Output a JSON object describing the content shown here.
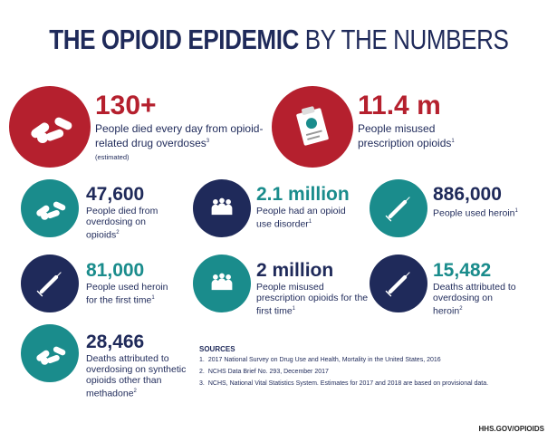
{
  "header": {
    "title_bold": "THE OPIOID EPIDEMIC",
    "title_light": "BY THE NUMBERS"
  },
  "stats": [
    {
      "number": "130+",
      "description": "People died every day from opioid-related drug overdoses",
      "source": "3",
      "note": "(estimated)"
    },
    {
      "number": "11.4 m",
      "description": "People misused prescription opioids",
      "source": "1"
    },
    {
      "number": "47,600",
      "description": "People died from overdosing on opioids",
      "source": "2"
    },
    {
      "number": "2.1 million",
      "description": "People had an opioid use disorder",
      "source": "1"
    },
    {
      "number": "886,000",
      "description": "People used heroin",
      "source": "1"
    },
    {
      "number": "81,000",
      "description": "People used heroin for the first time",
      "source": "1"
    },
    {
      "number": "2 million",
      "description": "People misused prescription opioids for the first time",
      "source": "1"
    },
    {
      "number": "15,482",
      "description": "Deaths attributed to overdosing on heroin",
      "source": "2"
    },
    {
      "number": "28,466",
      "description": "Deaths attributed to overdosing on synthetic opioids other than methadone",
      "source": "2"
    }
  ],
  "sources": {
    "heading": "SOURCES",
    "items": [
      {
        "number": "1.",
        "text": "2017 National Survey on Drug Use and Health, Mortality in the United States, 2016"
      },
      {
        "number": "2.",
        "text": "NCHS Data Brief No. 293, December 2017"
      },
      {
        "number": "3.",
        "text": "NCHS, National Vital Statistics System. Estimates for 2017 and 2018 are based on provisional data."
      }
    ]
  },
  "footer": {
    "site": "HHS.GOV/OPIOIDS"
  }
}
